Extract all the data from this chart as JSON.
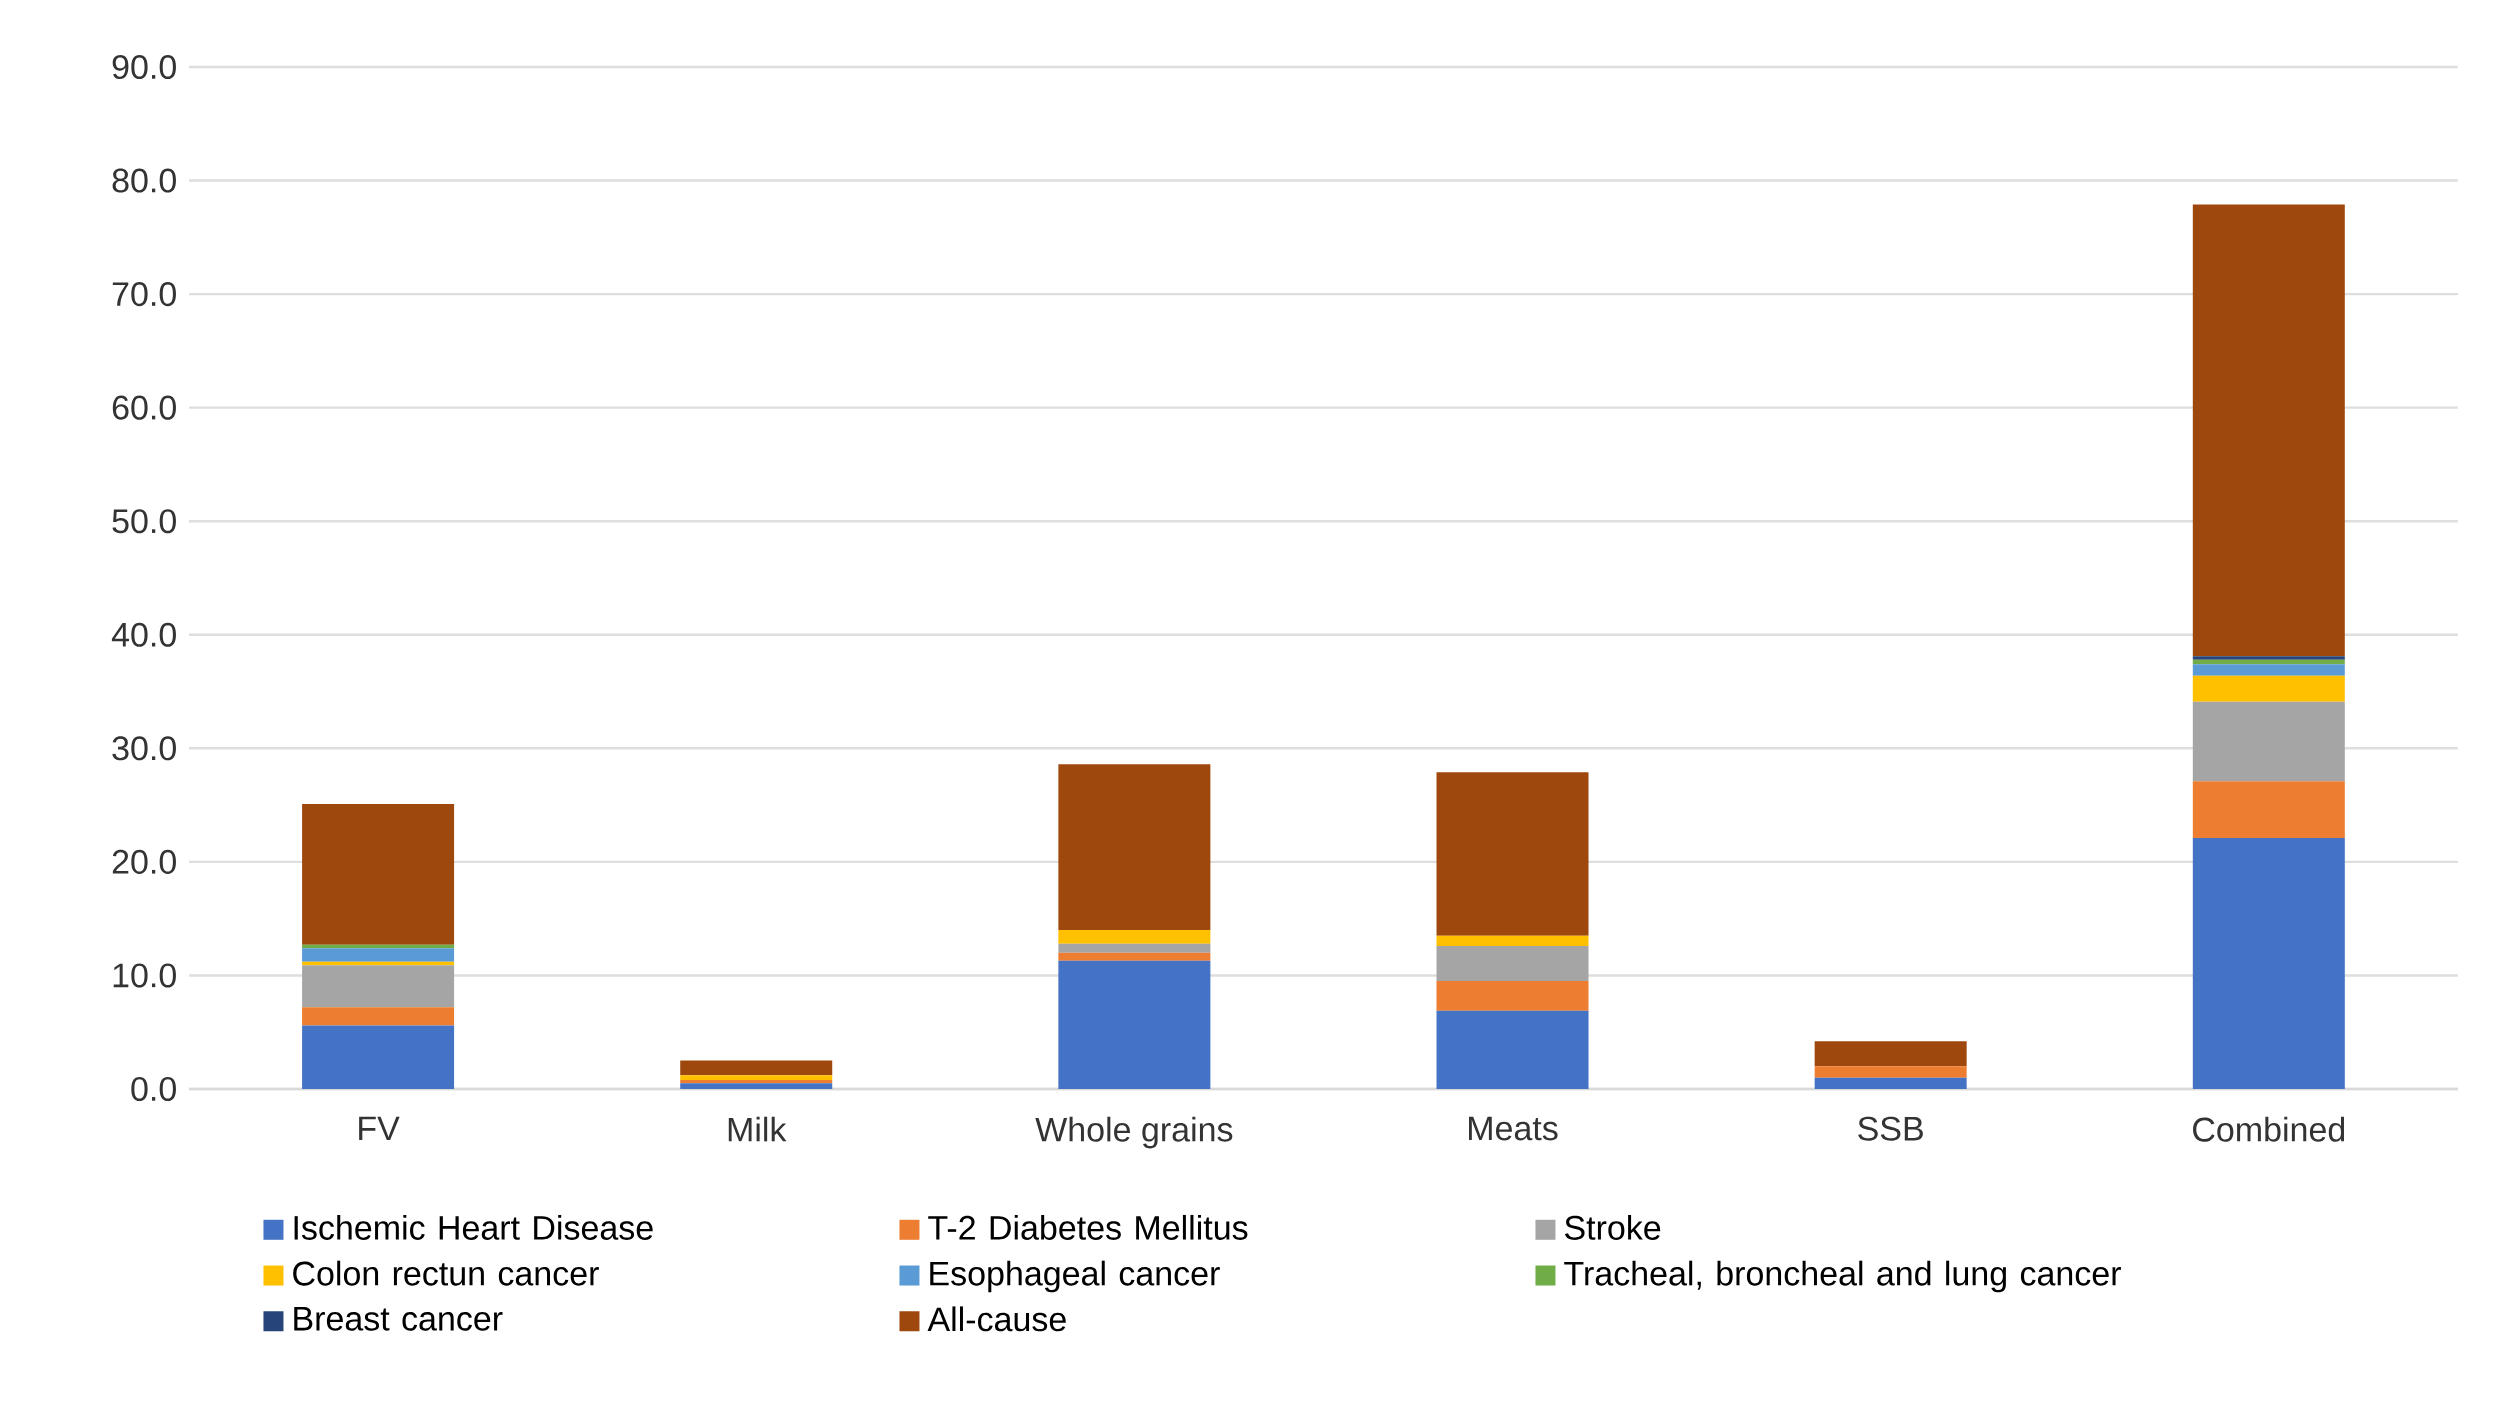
{
  "chart_data": {
    "type": "bar",
    "stacked": true,
    "grid": "y",
    "legend": "bottom",
    "categories": [
      "FV",
      "Milk",
      "Whole grains",
      "Meats",
      "SSB",
      "Combined"
    ],
    "ylim": [
      0,
      90
    ],
    "yticks": [
      {
        "value": 0,
        "label": "0.0"
      },
      {
        "value": 10,
        "label": "10.0"
      },
      {
        "value": 20,
        "label": "20.0"
      },
      {
        "value": 30,
        "label": "30.0"
      },
      {
        "value": 40,
        "label": "40.0"
      },
      {
        "value": 50,
        "label": "50.0"
      },
      {
        "value": 60,
        "label": "60.0"
      },
      {
        "value": 70,
        "label": "70.0"
      },
      {
        "value": 80,
        "label": "80.0"
      },
      {
        "value": 90,
        "label": "90.0"
      }
    ],
    "series": [
      {
        "name": "Ischemic Heart Disease",
        "color": "#4472c4",
        "values": [
          5.6,
          0.5,
          11.3,
          6.9,
          1.0,
          22.1
        ]
      },
      {
        "name": "T-2 Diabetes Mellitus",
        "color": "#ed7d31",
        "values": [
          1.6,
          0.3,
          0.7,
          2.6,
          1.0,
          5.0
        ]
      },
      {
        "name": "Stroke",
        "color": "#a5a5a5",
        "values": [
          3.7,
          0,
          0.8,
          3.1,
          0,
          7.0
        ]
      },
      {
        "name": "Colon rectun cancer",
        "color": "#ffc000",
        "values": [
          0.3,
          0.4,
          1.2,
          0.9,
          0,
          2.3
        ]
      },
      {
        "name": "Esophageal cancer",
        "color": "#5b9bd5",
        "values": [
          1.2,
          0,
          0,
          0,
          0,
          1.0
        ]
      },
      {
        "name": "Tracheal, broncheal and lung cancer",
        "color": "#70ad47",
        "values": [
          0.3,
          0,
          0,
          0,
          0,
          0.4
        ]
      },
      {
        "name": "Breast cancer",
        "color": "#264478",
        "values": [
          0,
          0,
          0,
          0,
          0,
          0.3
        ]
      },
      {
        "name": "All-cause",
        "color": "#9e480e",
        "values": [
          12.4,
          1.3,
          14.6,
          14.4,
          2.2,
          39.8
        ]
      }
    ]
  }
}
